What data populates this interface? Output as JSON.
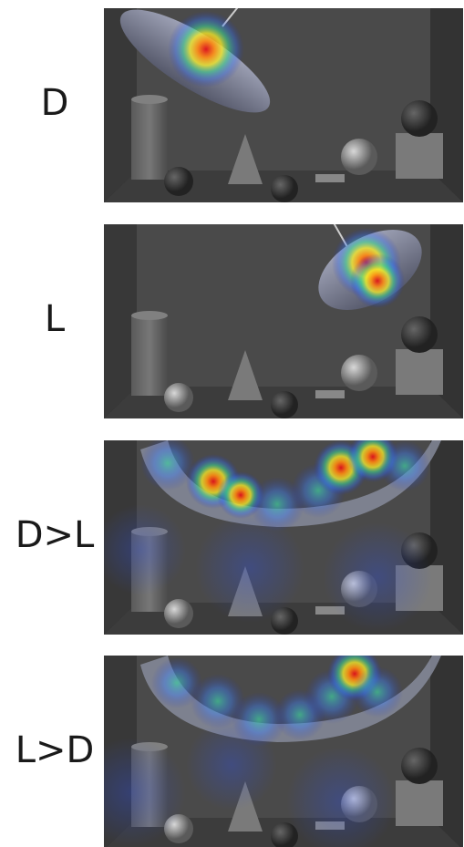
{
  "panels": [
    {
      "label": "D"
    },
    {
      "label": "L"
    },
    {
      "label": "D>L"
    },
    {
      "label": "L>D"
    }
  ]
}
